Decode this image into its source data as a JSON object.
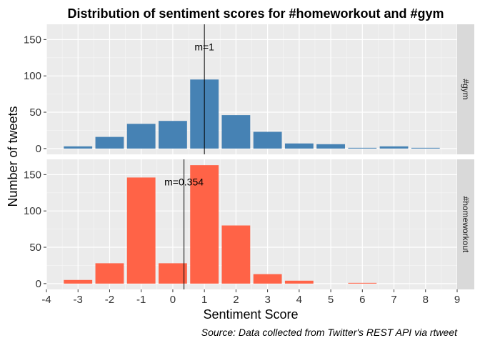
{
  "chart_data": {
    "type": "bar",
    "title": "Distribution of sentiment scores for #homeworkout and #gym",
    "xlabel": "Sentiment Score",
    "ylabel": "Number of tweets",
    "caption": "Source: Data collected from Twitter's REST API via rtweet",
    "xlim": [
      -4,
      9
    ],
    "x_ticks": [
      -4,
      -3,
      -2,
      -1,
      0,
      1,
      2,
      3,
      4,
      5,
      6,
      7,
      8,
      9
    ],
    "grid": true,
    "legend": "none",
    "facets": [
      {
        "name": "#gym",
        "color": "#4682B4",
        "ylim": [
          -8,
          171
        ],
        "y_ticks": [
          0,
          50,
          100,
          150
        ],
        "mean": 1,
        "mean_label": "m=1",
        "x": [
          -3,
          -2,
          -1,
          0,
          1,
          2,
          3,
          4,
          5,
          6,
          7,
          8
        ],
        "values": [
          3,
          16,
          34,
          38,
          95,
          46,
          23,
          7,
          6,
          1,
          3,
          1
        ]
      },
      {
        "name": "#homeworkout",
        "color": "#FF6347",
        "ylim": [
          -8,
          171
        ],
        "y_ticks": [
          0,
          50,
          100,
          150
        ],
        "mean": 0.354,
        "mean_label": "m=0.354",
        "x": [
          -3,
          -2,
          -1,
          0,
          1,
          2,
          3,
          4,
          5,
          6,
          7,
          8
        ],
        "values": [
          5,
          28,
          146,
          28,
          163,
          80,
          13,
          4,
          0,
          1,
          0,
          0
        ]
      }
    ]
  }
}
